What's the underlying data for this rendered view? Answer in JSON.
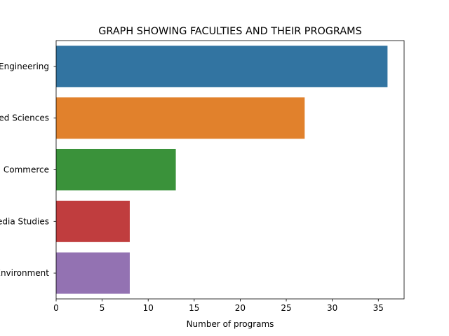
{
  "chart_data": {
    "type": "bar",
    "orientation": "horizontal",
    "title": "GRAPH SHOWING FACULTIES AND THEIR PROGRAMS",
    "xlabel": "Number of programs",
    "ylabel": "",
    "categories": [
      "Engineering",
      "Applied Sciences",
      "Business and Commerce",
      "Media Studies",
      "Built Environment"
    ],
    "values": [
      36,
      27,
      13,
      8,
      8
    ],
    "colors": [
      "#3274a1",
      "#e1812c",
      "#3a923a",
      "#c03d3e",
      "#9372b2"
    ],
    "xlim": [
      0,
      37.8
    ],
    "xticks": [
      "0",
      "5",
      "10",
      "15",
      "20",
      "25",
      "30",
      "35"
    ],
    "grid": false,
    "legend": "none"
  }
}
